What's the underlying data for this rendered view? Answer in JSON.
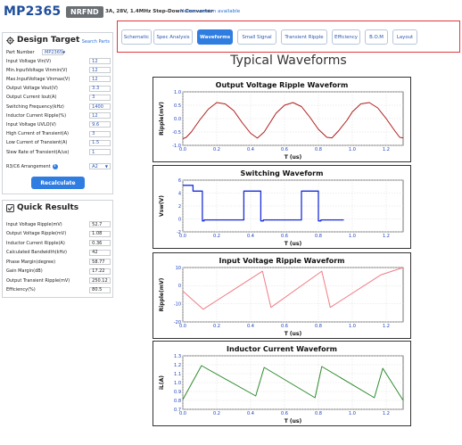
{
  "header": {
    "part": "MP2365",
    "badge": "NRFND",
    "description": "3A, 28V, 1.4MHz Step-Down Converter",
    "newer_version": "Newer version available"
  },
  "design_target": {
    "title": "Design Target",
    "search_parts": "Search Parts",
    "part_number_label": "Part Number",
    "part_number_value": "MP2365",
    "params": [
      {
        "label": "Input Voltage Vin(V)",
        "value": "12"
      },
      {
        "label": "Min.InputVoltage Vinmin(V)",
        "value": "12"
      },
      {
        "label": "Max.InputVoltage Vinmax(V)",
        "value": "12"
      },
      {
        "label": "Output Voltage Vout(V)",
        "value": "3.3"
      },
      {
        "label": "Output Current Iout(A)",
        "value": "3"
      },
      {
        "label": "Switching Frequency(kHz)",
        "value": "1400"
      },
      {
        "label": "Inductor Current Ripple(%)",
        "value": "12"
      },
      {
        "label": "Input Voltage UVLO(V)",
        "value": "9.6"
      },
      {
        "label": "High Current of Transient(A)",
        "value": "3"
      },
      {
        "label": "Low Current of Transient(A)",
        "value": "1.5"
      },
      {
        "label": "Slew Rate of Transient(A/us)",
        "value": "1"
      }
    ],
    "arrangement_label": "R3/C6 Arrangement",
    "arrangement_value": "A2",
    "recalculate": "Recalculate"
  },
  "quick_results": {
    "title": "Quick Results",
    "rows": [
      {
        "label": "Input Voltage Ripple(mV)",
        "value": "52.7"
      },
      {
        "label": "Output Voltage Ripple(mV)",
        "value": "1.08"
      },
      {
        "label": "Inductor Current Ripple(A)",
        "value": "0.36"
      },
      {
        "label": "Calculated Bandwidth(kHz)",
        "value": "42"
      },
      {
        "label": "Phase Margin(degree)",
        "value": "58.77"
      },
      {
        "label": "Gain Margin(dB)",
        "value": "17.22"
      },
      {
        "label": "Output Transient Ripple(mV)",
        "value": "250.12"
      },
      {
        "label": "Efficiency(%)",
        "value": "80.5"
      }
    ]
  },
  "tabs": [
    {
      "label": "Schematic",
      "active": false
    },
    {
      "label": "Spec Analysis",
      "active": false
    },
    {
      "label": "Waveforms",
      "active": true
    },
    {
      "label": "Small Signal",
      "active": false
    },
    {
      "label": "Transient Ripple",
      "active": false
    },
    {
      "label": "Efficiency",
      "active": false
    },
    {
      "label": "B.O.M",
      "active": false
    },
    {
      "label": "Layout",
      "active": false
    }
  ],
  "page_heading": "Typical Waveforms",
  "colors": {
    "accent": "#2f7de1",
    "brand": "#1f4e9c",
    "highlight_border": "#e0393e"
  },
  "chart_data": [
    {
      "type": "line",
      "title": "Output Voltage Ripple Waveform",
      "xlabel": "T (us)",
      "ylabel": "Ripple(mV)",
      "xlim": [
        0,
        1.3
      ],
      "ylim": [
        -1.0,
        1.0
      ],
      "xticks": [
        "0.0",
        "0.2",
        "0.4",
        "0.6",
        "0.8",
        "1.0",
        "1.2"
      ],
      "yticks": [
        "1.0",
        "0.5",
        "0.0",
        "-0.5",
        "-1.0"
      ],
      "color": "#b01c1c",
      "x": [
        0,
        0.02,
        0.05,
        0.1,
        0.15,
        0.2,
        0.25,
        0.3,
        0.35,
        0.4,
        0.44,
        0.48,
        0.51,
        0.55,
        0.6,
        0.65,
        0.7,
        0.75,
        0.8,
        0.85,
        0.88,
        0.92,
        0.97,
        1.0,
        1.05,
        1.1,
        1.15,
        1.2,
        1.25,
        1.28,
        1.3
      ],
      "y": [
        -0.75,
        -0.7,
        -0.5,
        -0.05,
        0.35,
        0.6,
        0.55,
        0.3,
        -0.15,
        -0.55,
        -0.73,
        -0.5,
        -0.2,
        0.2,
        0.5,
        0.6,
        0.45,
        0.05,
        -0.4,
        -0.7,
        -0.72,
        -0.45,
        -0.05,
        0.25,
        0.55,
        0.6,
        0.4,
        0.0,
        -0.45,
        -0.7,
        -0.72
      ]
    },
    {
      "type": "line",
      "title": "Switching Waveform",
      "xlabel": "T (us)",
      "ylabel": "Vsw(V)",
      "xlim": [
        0,
        1.3
      ],
      "ylim": [
        -2,
        6
      ],
      "xticks": [
        "0.0",
        "0.2",
        "0.4",
        "0.6",
        "0.8",
        "1.0",
        "1.2"
      ],
      "yticks": [
        "6",
        "4",
        "2",
        "0",
        "-2"
      ],
      "color": "#1a2fd8",
      "x": [
        0,
        0.06,
        0.06,
        0.115,
        0.115,
        0.125,
        0.125,
        0.36,
        0.36,
        0.46,
        0.46,
        0.475,
        0.475,
        0.7,
        0.7,
        0.8,
        0.8,
        0.815,
        0.815,
        0.95
      ],
      "y": [
        5.2,
        5.2,
        4.3,
        4.3,
        -0.3,
        -0.3,
        -0.15,
        -0.15,
        4.3,
        4.3,
        -0.3,
        -0.3,
        -0.15,
        -0.15,
        4.3,
        4.3,
        -0.3,
        -0.3,
        -0.15,
        -0.15
      ]
    },
    {
      "type": "line",
      "title": "Input Voltage Ripple Waveform",
      "xlabel": "T (us)",
      "ylabel": "Ripple(mV)",
      "xlim": [
        0,
        1.3
      ],
      "ylim": [
        -20,
        10
      ],
      "xticks": [
        "0.0",
        "0.2",
        "0.4",
        "0.6",
        "0.8",
        "1.0",
        "1.2"
      ],
      "yticks": [
        "10",
        "0",
        "-10",
        "-20"
      ],
      "color": "#f07c87",
      "x": [
        0,
        0.06,
        0.12,
        0.47,
        0.52,
        0.82,
        0.87,
        1.17,
        1.3
      ],
      "y": [
        -3,
        -8,
        -13,
        8,
        -12,
        8,
        -12,
        6,
        10
      ]
    },
    {
      "type": "line",
      "title": "Inductor Current Waveform",
      "xlabel": "T (us)",
      "ylabel": "iL(A)",
      "xlim": [
        0,
        1.3
      ],
      "ylim": [
        0.7,
        1.3
      ],
      "xticks": [
        "0.0",
        "0.2",
        "0.4",
        "0.6",
        "0.8",
        "1.0",
        "1.2"
      ],
      "yticks": [
        "1.3",
        "1.2",
        "1.1",
        "1.0",
        "0.9",
        "0.8",
        "0.7"
      ],
      "color": "#2e8a2e",
      "x": [
        0,
        0.11,
        0.43,
        0.48,
        0.78,
        0.82,
        1.13,
        1.18,
        1.3
      ],
      "y": [
        0.81,
        1.19,
        0.85,
        1.17,
        0.83,
        1.18,
        0.83,
        1.16,
        0.8
      ]
    }
  ]
}
